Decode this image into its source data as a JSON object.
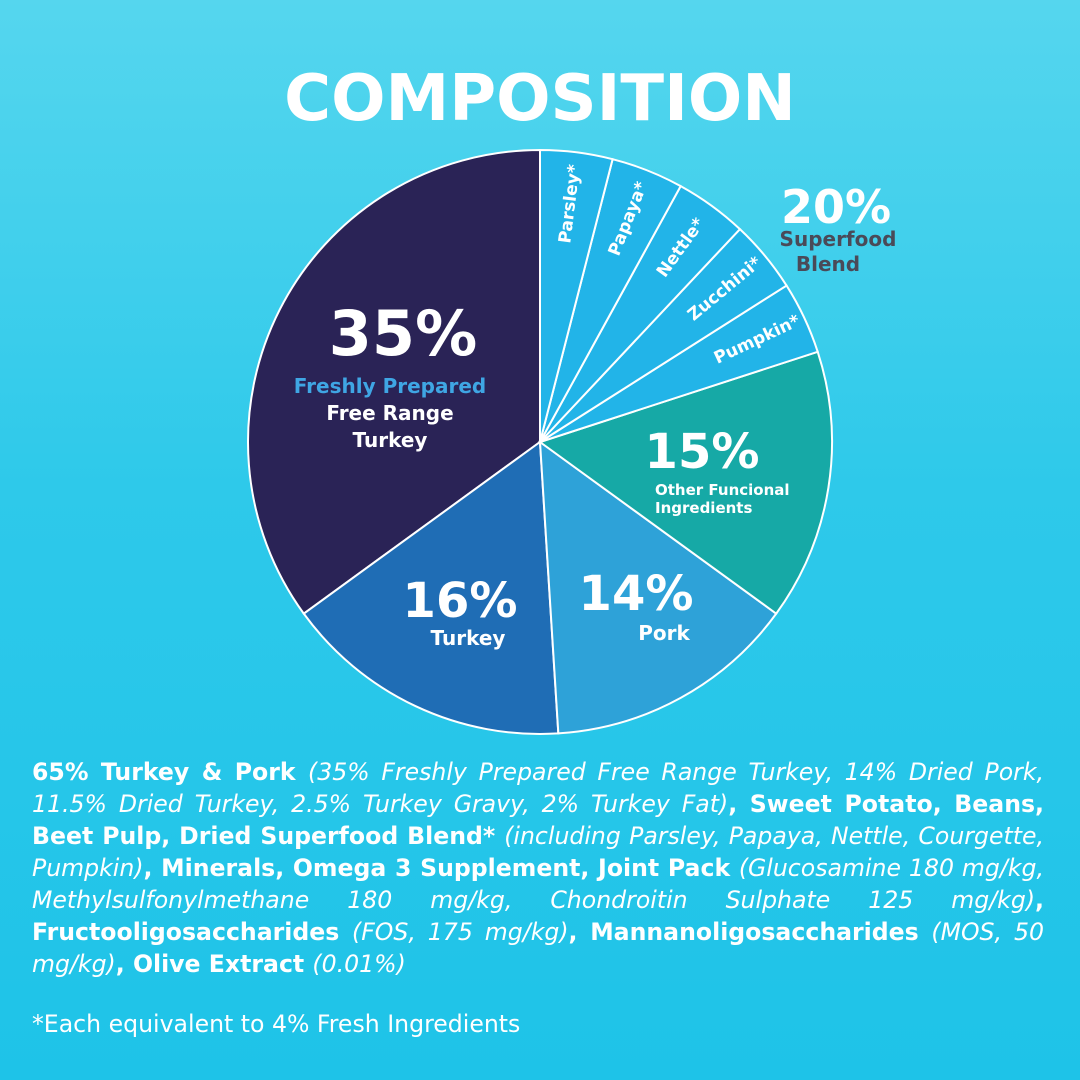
{
  "title": "COMPOSITION",
  "colors": {
    "turkey_fresh": "#2a2356",
    "turkey": "#1f6db5",
    "pork": "#2ea2d8",
    "other": "#16a9a6",
    "superfood": "#22b4e8",
    "freshly_prepared_text": "#3fa6e4",
    "superfood_label_text": "#4a4a58"
  },
  "chart_data": {
    "type": "pie",
    "slices": [
      {
        "label": "Freshly Prepared Free Range Turkey",
        "value": 35,
        "percent_text": "35%",
        "label_line1": "Freshly Prepared",
        "label_line2": "Free Range",
        "label_line3": "Turkey"
      },
      {
        "label": "Turkey",
        "value": 16,
        "percent_text": "16%",
        "label_line1": "Turkey"
      },
      {
        "label": "Pork",
        "value": 14,
        "percent_text": "14%",
        "label_line1": "Pork"
      },
      {
        "label": "Other Funcional Ingredients",
        "value": 15,
        "percent_text": "15%",
        "label_line1": "Other Funcional",
        "label_line2": "Ingredients"
      },
      {
        "label": "Pumpkin*",
        "value": 4
      },
      {
        "label": "Zucchini*",
        "value": 4
      },
      {
        "label": "Nettle*",
        "value": 4
      },
      {
        "label": "Papaya*",
        "value": 4
      },
      {
        "label": "Parsley*",
        "value": 4
      }
    ],
    "group_label": {
      "percent_text": "20%",
      "line1": "Superfood",
      "line2": "Blend"
    }
  },
  "ingredients": [
    {
      "t": "65% Turkey & Pork ",
      "s": "b"
    },
    {
      "t": "(35% Freshly Prepared Free Range Turkey, 14% Dried Pork, 11.5% Dried Turkey, 2.5% Turkey Gravy, 2% Turkey Fat)",
      "s": "i"
    },
    {
      "t": ", Sweet Potato, Beans, Beet Pulp, Dried Superfood Blend* ",
      "s": "b"
    },
    {
      "t": "(including Parsley, Papaya, Nettle, Courgette, Pumpkin)",
      "s": "i"
    },
    {
      "t": ", Minerals, Omega 3 Supplement, Joint Pack ",
      "s": "b"
    },
    {
      "t": "(Glucosamine 180 mg/kg, Methylsulfonylmethane 180 mg/kg, Chondroitin Sulphate 125 mg/kg)",
      "s": "i"
    },
    {
      "t": ", Fructooligosaccharides ",
      "s": "b"
    },
    {
      "t": "(FOS, 175 mg/kg)",
      "s": "i"
    },
    {
      "t": ", Mannanoligosaccharides ",
      "s": "b"
    },
    {
      "t": "(MOS, 50 mg/kg)",
      "s": "i"
    },
    {
      "t": ", Olive Extract ",
      "s": "b"
    },
    {
      "t": "(0.01%)",
      "s": "i"
    }
  ],
  "footnote": "*Each equivalent to 4% Fresh Ingredients"
}
